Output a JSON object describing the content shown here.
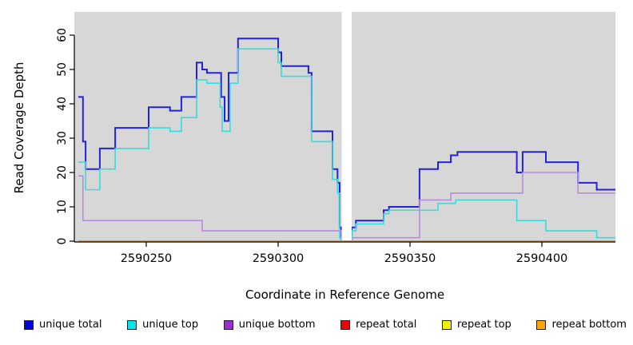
{
  "y_axis": {
    "label": "Read Coverage Depth",
    "ticks": [
      0,
      10,
      20,
      30,
      40,
      50,
      60
    ]
  },
  "x_axis": {
    "label": "Coordinate in Reference Genome",
    "ticks": [
      2590250,
      2590300,
      2590350,
      2590400
    ]
  },
  "colors": {
    "plot_bg": "#d7d7d7",
    "axis": "#000000"
  },
  "chart_data": {
    "type": "line",
    "step": true,
    "title": "",
    "xlabel": "Coordinate in Reference Genome",
    "ylabel": "Read Coverage Depth",
    "x_range": [
      2590224.2,
      2590427.9
    ],
    "y_range": [
      0,
      62
    ],
    "grid": false,
    "legend_position": "bottom",
    "gap": {
      "from": 2590324.1,
      "to": 2590327.9
    },
    "series": [
      {
        "name": "unique total",
        "color": "#2222dd",
        "width": 2,
        "points": [
          [
            2590224.2,
            42
          ],
          [
            2590226,
            29
          ],
          [
            2590227,
            21
          ],
          [
            2590232.4,
            27
          ],
          [
            2590238.2,
            33
          ],
          [
            2590250.9,
            39
          ],
          [
            2590259,
            38
          ],
          [
            2590263.3,
            42
          ],
          [
            2590269.1,
            52
          ],
          [
            2590271.2,
            50
          ],
          [
            2590273,
            49
          ],
          [
            2590278.4,
            42
          ],
          [
            2590279.7,
            35
          ],
          [
            2590281.2,
            49
          ],
          [
            2590284.8,
            59
          ],
          [
            2590300,
            55
          ],
          [
            2590301.2,
            51
          ],
          [
            2590311.5,
            49
          ],
          [
            2590312.7,
            32
          ],
          [
            2590320.6,
            21
          ],
          [
            2590322.5,
            17
          ],
          [
            2590323.3,
            4
          ],
          [
            2590323.9,
            0
          ],
          [
            2590327.9,
            4
          ],
          [
            2590329.5,
            6
          ],
          [
            2590340,
            9
          ],
          [
            2590342,
            10
          ],
          [
            2590353.6,
            21
          ],
          [
            2590360.6,
            23
          ],
          [
            2590365.5,
            25
          ],
          [
            2590368,
            26
          ],
          [
            2590390.5,
            20
          ],
          [
            2590392.7,
            26
          ],
          [
            2590401.5,
            23
          ],
          [
            2590413.7,
            17
          ],
          [
            2590420.8,
            15
          ]
        ]
      },
      {
        "name": "unique top",
        "color": "#3adada",
        "width": 1.6,
        "points": [
          [
            2590224.2,
            23
          ],
          [
            2590227,
            15
          ],
          [
            2590232.4,
            21
          ],
          [
            2590238.2,
            27
          ],
          [
            2590250.9,
            33
          ],
          [
            2590259,
            32
          ],
          [
            2590263.3,
            36
          ],
          [
            2590269.1,
            47
          ],
          [
            2590273,
            46
          ],
          [
            2590278.0,
            39
          ],
          [
            2590278.8,
            32
          ],
          [
            2590281.8,
            46
          ],
          [
            2590284.8,
            56
          ],
          [
            2590300,
            52
          ],
          [
            2590301.2,
            48
          ],
          [
            2590312.7,
            29
          ],
          [
            2590320.6,
            18
          ],
          [
            2590322.5,
            14
          ],
          [
            2590323.3,
            1
          ],
          [
            2590323.9,
            0
          ],
          [
            2590327.9,
            3
          ],
          [
            2590329.5,
            5
          ],
          [
            2590340,
            8
          ],
          [
            2590342,
            9
          ],
          [
            2590360.6,
            11
          ],
          [
            2590367.3,
            12
          ],
          [
            2590390.5,
            6
          ],
          [
            2590401.5,
            3
          ],
          [
            2590420.8,
            1
          ]
        ]
      },
      {
        "name": "unique bottom",
        "color": "#b88ce0",
        "width": 1.6,
        "points": [
          [
            2590224.2,
            19
          ],
          [
            2590226,
            6
          ],
          [
            2590271.2,
            3
          ],
          [
            2590324,
            0
          ],
          [
            2590327.9,
            1
          ],
          [
            2590353.6,
            12
          ],
          [
            2590365.5,
            14
          ],
          [
            2590392.7,
            20
          ],
          [
            2590413.7,
            14
          ]
        ]
      },
      {
        "name": "repeat total",
        "color": "#ee0000",
        "width": 1.6,
        "points": [
          [
            2590224.2,
            0
          ]
        ]
      },
      {
        "name": "repeat top",
        "color": "#f2f200",
        "width": 1.6,
        "points": [
          [
            2590224.2,
            0
          ]
        ]
      },
      {
        "name": "repeat bottom",
        "color": "#ff9800",
        "width": 2,
        "points": [
          [
            2590224.2,
            0
          ]
        ]
      }
    ]
  },
  "legend": [
    {
      "label": "unique total",
      "swatch": "#0000e0"
    },
    {
      "label": "unique top",
      "swatch": "#00e5e5"
    },
    {
      "label": "unique bottom",
      "swatch": "#9932cc"
    },
    {
      "label": "repeat total",
      "swatch": "#ee0000"
    },
    {
      "label": "repeat top",
      "swatch": "#f2f200"
    },
    {
      "label": "repeat bottom",
      "swatch": "#ffa500"
    }
  ]
}
